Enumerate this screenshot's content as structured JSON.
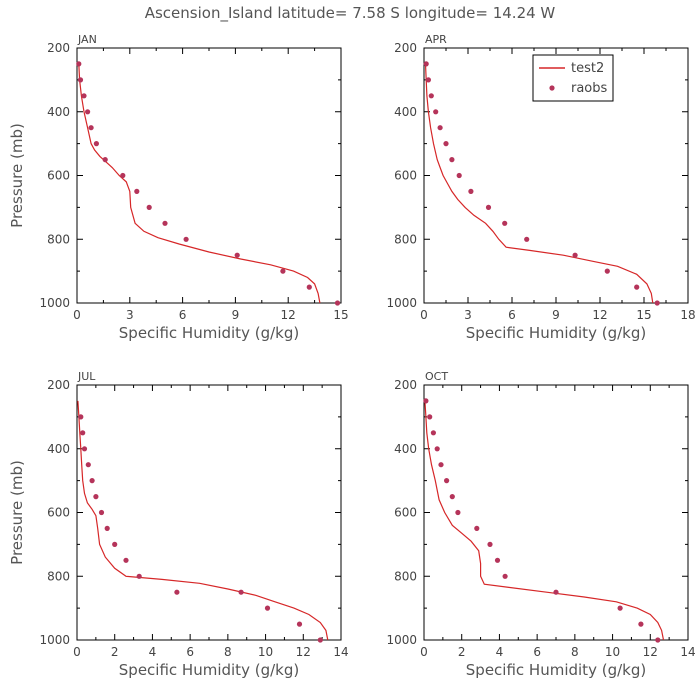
{
  "title": "Ascension_Island  latitude= 7.58 S longitude= 14.24 W",
  "colors": {
    "model": "#d62728",
    "obs": "#b5345a",
    "axis": "#000000",
    "text": "#555555"
  },
  "legend": {
    "model_label": "test2",
    "obs_label": "raobs",
    "placement": "top-right of APR panel"
  },
  "chart_data": [
    {
      "type": "line",
      "panel": "JAN",
      "title": "JAN",
      "xlabel": "Specific Humidity (g/kg)",
      "ylabel": "Pressure (mb)",
      "xlim": [
        0,
        15
      ],
      "ylim": [
        1000,
        200
      ],
      "xticks": [
        0,
        3,
        6,
        9,
        12,
        15
      ],
      "yticks": [
        200,
        400,
        600,
        800,
        1000
      ],
      "grid": false,
      "series": [
        {
          "name": "test2",
          "style": "line",
          "x": [
            0.1,
            0.15,
            0.25,
            0.4,
            0.6,
            0.8,
            1.0,
            1.3,
            1.6,
            2.0,
            2.4,
            2.8,
            3.0,
            3.05,
            3.3,
            3.8,
            4.6,
            5.8,
            7.5,
            9.3,
            11.0,
            12.3,
            13.1,
            13.5,
            13.7,
            13.8
          ],
          "y": [
            250,
            300,
            350,
            400,
            450,
            500,
            520,
            540,
            555,
            575,
            600,
            620,
            650,
            700,
            750,
            775,
            795,
            815,
            840,
            862,
            880,
            900,
            920,
            940,
            970,
            1000
          ]
        },
        {
          "name": "raobs",
          "style": "points",
          "x": [
            0.1,
            0.2,
            0.4,
            0.6,
            0.8,
            1.1,
            1.6,
            2.6,
            3.4,
            4.1,
            5.0,
            6.2,
            9.1,
            11.7,
            13.2,
            14.8
          ],
          "y": [
            250,
            300,
            350,
            400,
            450,
            500,
            550,
            600,
            650,
            700,
            750,
            800,
            850,
            900,
            950,
            1000
          ]
        }
      ]
    },
    {
      "type": "line",
      "panel": "APR",
      "title": "APR",
      "xlabel": "Specific Humidity (g/kg)",
      "ylabel": "",
      "xlim": [
        0,
        18
      ],
      "ylim": [
        1000,
        200
      ],
      "xticks": [
        0,
        3,
        6,
        9,
        12,
        15,
        18
      ],
      "yticks": [
        200,
        400,
        600,
        800,
        1000
      ],
      "grid": false,
      "series": [
        {
          "name": "test2",
          "style": "line",
          "x": [
            0.1,
            0.15,
            0.2,
            0.3,
            0.45,
            0.65,
            0.9,
            1.1,
            1.3,
            1.6,
            1.9,
            2.3,
            2.8,
            3.4,
            4.2,
            4.7,
            5.1,
            5.6,
            7.2,
            9.5,
            11.6,
            13.2,
            14.5,
            15.2,
            15.5,
            15.6
          ],
          "y": [
            250,
            300,
            350,
            400,
            450,
            500,
            550,
            575,
            600,
            625,
            650,
            675,
            700,
            725,
            750,
            775,
            800,
            825,
            835,
            850,
            870,
            885,
            910,
            940,
            970,
            1000
          ]
        },
        {
          "name": "raobs",
          "style": "points",
          "x": [
            0.15,
            0.3,
            0.5,
            0.8,
            1.1,
            1.5,
            1.9,
            2.4,
            3.2,
            4.4,
            5.5,
            7.0,
            10.3,
            12.5,
            14.5,
            15.9
          ],
          "y": [
            250,
            300,
            350,
            400,
            450,
            500,
            550,
            600,
            650,
            700,
            750,
            800,
            850,
            900,
            950,
            1000
          ]
        }
      ]
    },
    {
      "type": "line",
      "panel": "JUL",
      "title": "JUL",
      "xlabel": "Specific Humidity (g/kg)",
      "ylabel": "Pressure (mb)",
      "xlim": [
        0,
        14
      ],
      "ylim": [
        1000,
        200
      ],
      "xticks": [
        0,
        2,
        4,
        6,
        8,
        10,
        12,
        14
      ],
      "yticks": [
        200,
        400,
        600,
        800,
        1000
      ],
      "grid": false,
      "series": [
        {
          "name": "test2",
          "style": "line",
          "x": [
            0.05,
            0.1,
            0.15,
            0.2,
            0.25,
            0.3,
            0.4,
            0.55,
            0.8,
            1.0,
            1.1,
            1.2,
            1.5,
            2.0,
            2.6,
            4.5,
            6.5,
            8.0,
            9.5,
            10.5,
            11.5,
            12.3,
            12.9,
            13.2,
            13.3
          ],
          "y": [
            250,
            300,
            350,
            400,
            450,
            500,
            540,
            570,
            590,
            610,
            650,
            700,
            740,
            775,
            800,
            810,
            822,
            840,
            860,
            880,
            900,
            920,
            945,
            970,
            1000
          ]
        },
        {
          "name": "raobs",
          "style": "points",
          "x": [
            0.2,
            0.3,
            0.4,
            0.6,
            0.8,
            1.0,
            1.3,
            1.6,
            2.0,
            2.6,
            3.3,
            5.3,
            8.7,
            10.1,
            11.8,
            12.9
          ],
          "y": [
            300,
            350,
            400,
            450,
            500,
            550,
            600,
            650,
            700,
            750,
            800,
            850,
            850,
            900,
            950,
            1000
          ]
        }
      ]
    },
    {
      "type": "line",
      "panel": "OCT",
      "title": "OCT",
      "xlabel": "Specific Humidity (g/kg)",
      "ylabel": "",
      "xlim": [
        0,
        14
      ],
      "ylim": [
        1000,
        200
      ],
      "xticks": [
        0,
        2,
        4,
        6,
        8,
        10,
        12,
        14
      ],
      "yticks": [
        200,
        400,
        600,
        800,
        1000
      ],
      "grid": false,
      "series": [
        {
          "name": "test2",
          "style": "line",
          "x": [
            0.05,
            0.1,
            0.15,
            0.25,
            0.4,
            0.6,
            0.8,
            1.1,
            1.5,
            2.0,
            2.5,
            2.9,
            3.0,
            3.0,
            3.2,
            4.5,
            6.5,
            8.5,
            10.2,
            11.3,
            12.0,
            12.4,
            12.6,
            12.7
          ],
          "y": [
            250,
            300,
            350,
            400,
            450,
            500,
            560,
            600,
            640,
            665,
            690,
            720,
            760,
            800,
            825,
            835,
            850,
            865,
            880,
            900,
            920,
            945,
            970,
            1000
          ]
        },
        {
          "name": "raobs",
          "style": "points",
          "x": [
            0.1,
            0.3,
            0.5,
            0.7,
            0.9,
            1.2,
            1.5,
            1.8,
            2.8,
            3.5,
            3.9,
            4.3,
            7.0,
            10.4,
            11.5,
            12.4
          ],
          "y": [
            250,
            300,
            350,
            400,
            450,
            500,
            550,
            600,
            650,
            700,
            750,
            800,
            850,
            900,
            950,
            1000
          ]
        }
      ]
    }
  ]
}
